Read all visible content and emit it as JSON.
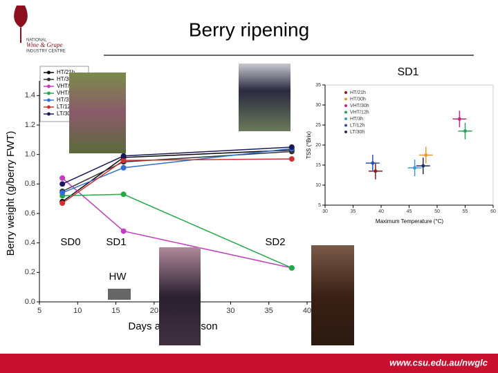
{
  "slide": {
    "title": "Berry ripening",
    "logo": [
      "NATIONAL",
      "Wine & Grape",
      "INDUSTRY CENTRE"
    ],
    "corner_label": "SD1",
    "stage_labels": [
      "SD0",
      "SD1",
      "SD2",
      "HW"
    ],
    "footer": "www.csu.edu.au/nwglc"
  },
  "chart_data": [
    {
      "type": "line",
      "x_label": "Days after veraison",
      "y_label": "Berry weight (g/berry FWT)",
      "x": [
        8,
        16,
        38
      ],
      "xlim": [
        5,
        41
      ],
      "xticks": [
        5,
        10,
        15,
        20,
        25,
        30,
        35,
        40
      ],
      "ylim": [
        0,
        1.5
      ],
      "yticks": [
        {
          "value": 0,
          "label": "0.0"
        },
        {
          "value": 0.2,
          "label": "0.2"
        },
        {
          "value": 0.4,
          "label": "0.4"
        },
        {
          "value": 0.6,
          "label": "0.6"
        },
        {
          "value": 0.8,
          "label": "0.8"
        },
        {
          "value": 1.0,
          "label": "1.0"
        },
        {
          "value": 1.2,
          "label": "1.2"
        },
        {
          "value": 1.4,
          "label": "1.4"
        }
      ],
      "series": [
        {
          "name": "HT/21h",
          "color": "#000000",
          "values": [
            0.68,
            0.98,
            1.03
          ]
        },
        {
          "name": "HT/30h",
          "color": "#333333",
          "values": [
            0.75,
            0.95,
            1.02
          ]
        },
        {
          "name": "VHT/30h",
          "color": "#c23bc2",
          "values": [
            0.84,
            0.48,
            0.23
          ]
        },
        {
          "name": "VHT/12h",
          "color": "#22aa44",
          "values": [
            0.72,
            0.73,
            0.23
          ]
        },
        {
          "name": "HT/3h",
          "color": "#2f6fcf",
          "values": [
            0.74,
            0.91,
            1.04
          ]
        },
        {
          "name": "LT/12h",
          "color": "#d03030",
          "values": [
            0.67,
            0.96,
            0.97
          ]
        },
        {
          "name": "LT/30h",
          "color": "#1a1a5a",
          "values": [
            0.8,
            0.99,
            1.05
          ]
        }
      ]
    },
    {
      "type": "scatter",
      "x_label": "Maximum Temperature (°C)",
      "y_label": "TSS (°Brix)",
      "xlim": [
        30,
        60
      ],
      "xticks": [
        30,
        35,
        40,
        45,
        50,
        55,
        60
      ],
      "ylim": [
        5,
        35
      ],
      "yticks": [
        5,
        10,
        15,
        20,
        25,
        30,
        35
      ],
      "series": [
        {
          "name": "HT/21h",
          "color": "#8b1a1a",
          "x": [
            39
          ],
          "values": [
            13.5
          ]
        },
        {
          "name": "HT/30h",
          "color": "#e89a2c",
          "x": [
            48
          ],
          "values": [
            17.5
          ]
        },
        {
          "name": "VHT/30h",
          "color": "#c0267a",
          "x": [
            54
          ],
          "values": [
            26.5
          ]
        },
        {
          "name": "VHT/12h",
          "color": "#2ca05a",
          "x": [
            55
          ],
          "values": [
            23.5
          ]
        },
        {
          "name": "HT/3h",
          "color": "#3a9ad8",
          "x": [
            46
          ],
          "values": [
            14.3
          ]
        },
        {
          "name": "LT/12h",
          "color": "#2a4fb0",
          "x": [
            38.5
          ],
          "values": [
            15.5
          ]
        },
        {
          "name": "LT/30h",
          "color": "#1f2a6a",
          "x": [
            47.5
          ],
          "values": [
            14.8
          ]
        }
      ]
    }
  ]
}
